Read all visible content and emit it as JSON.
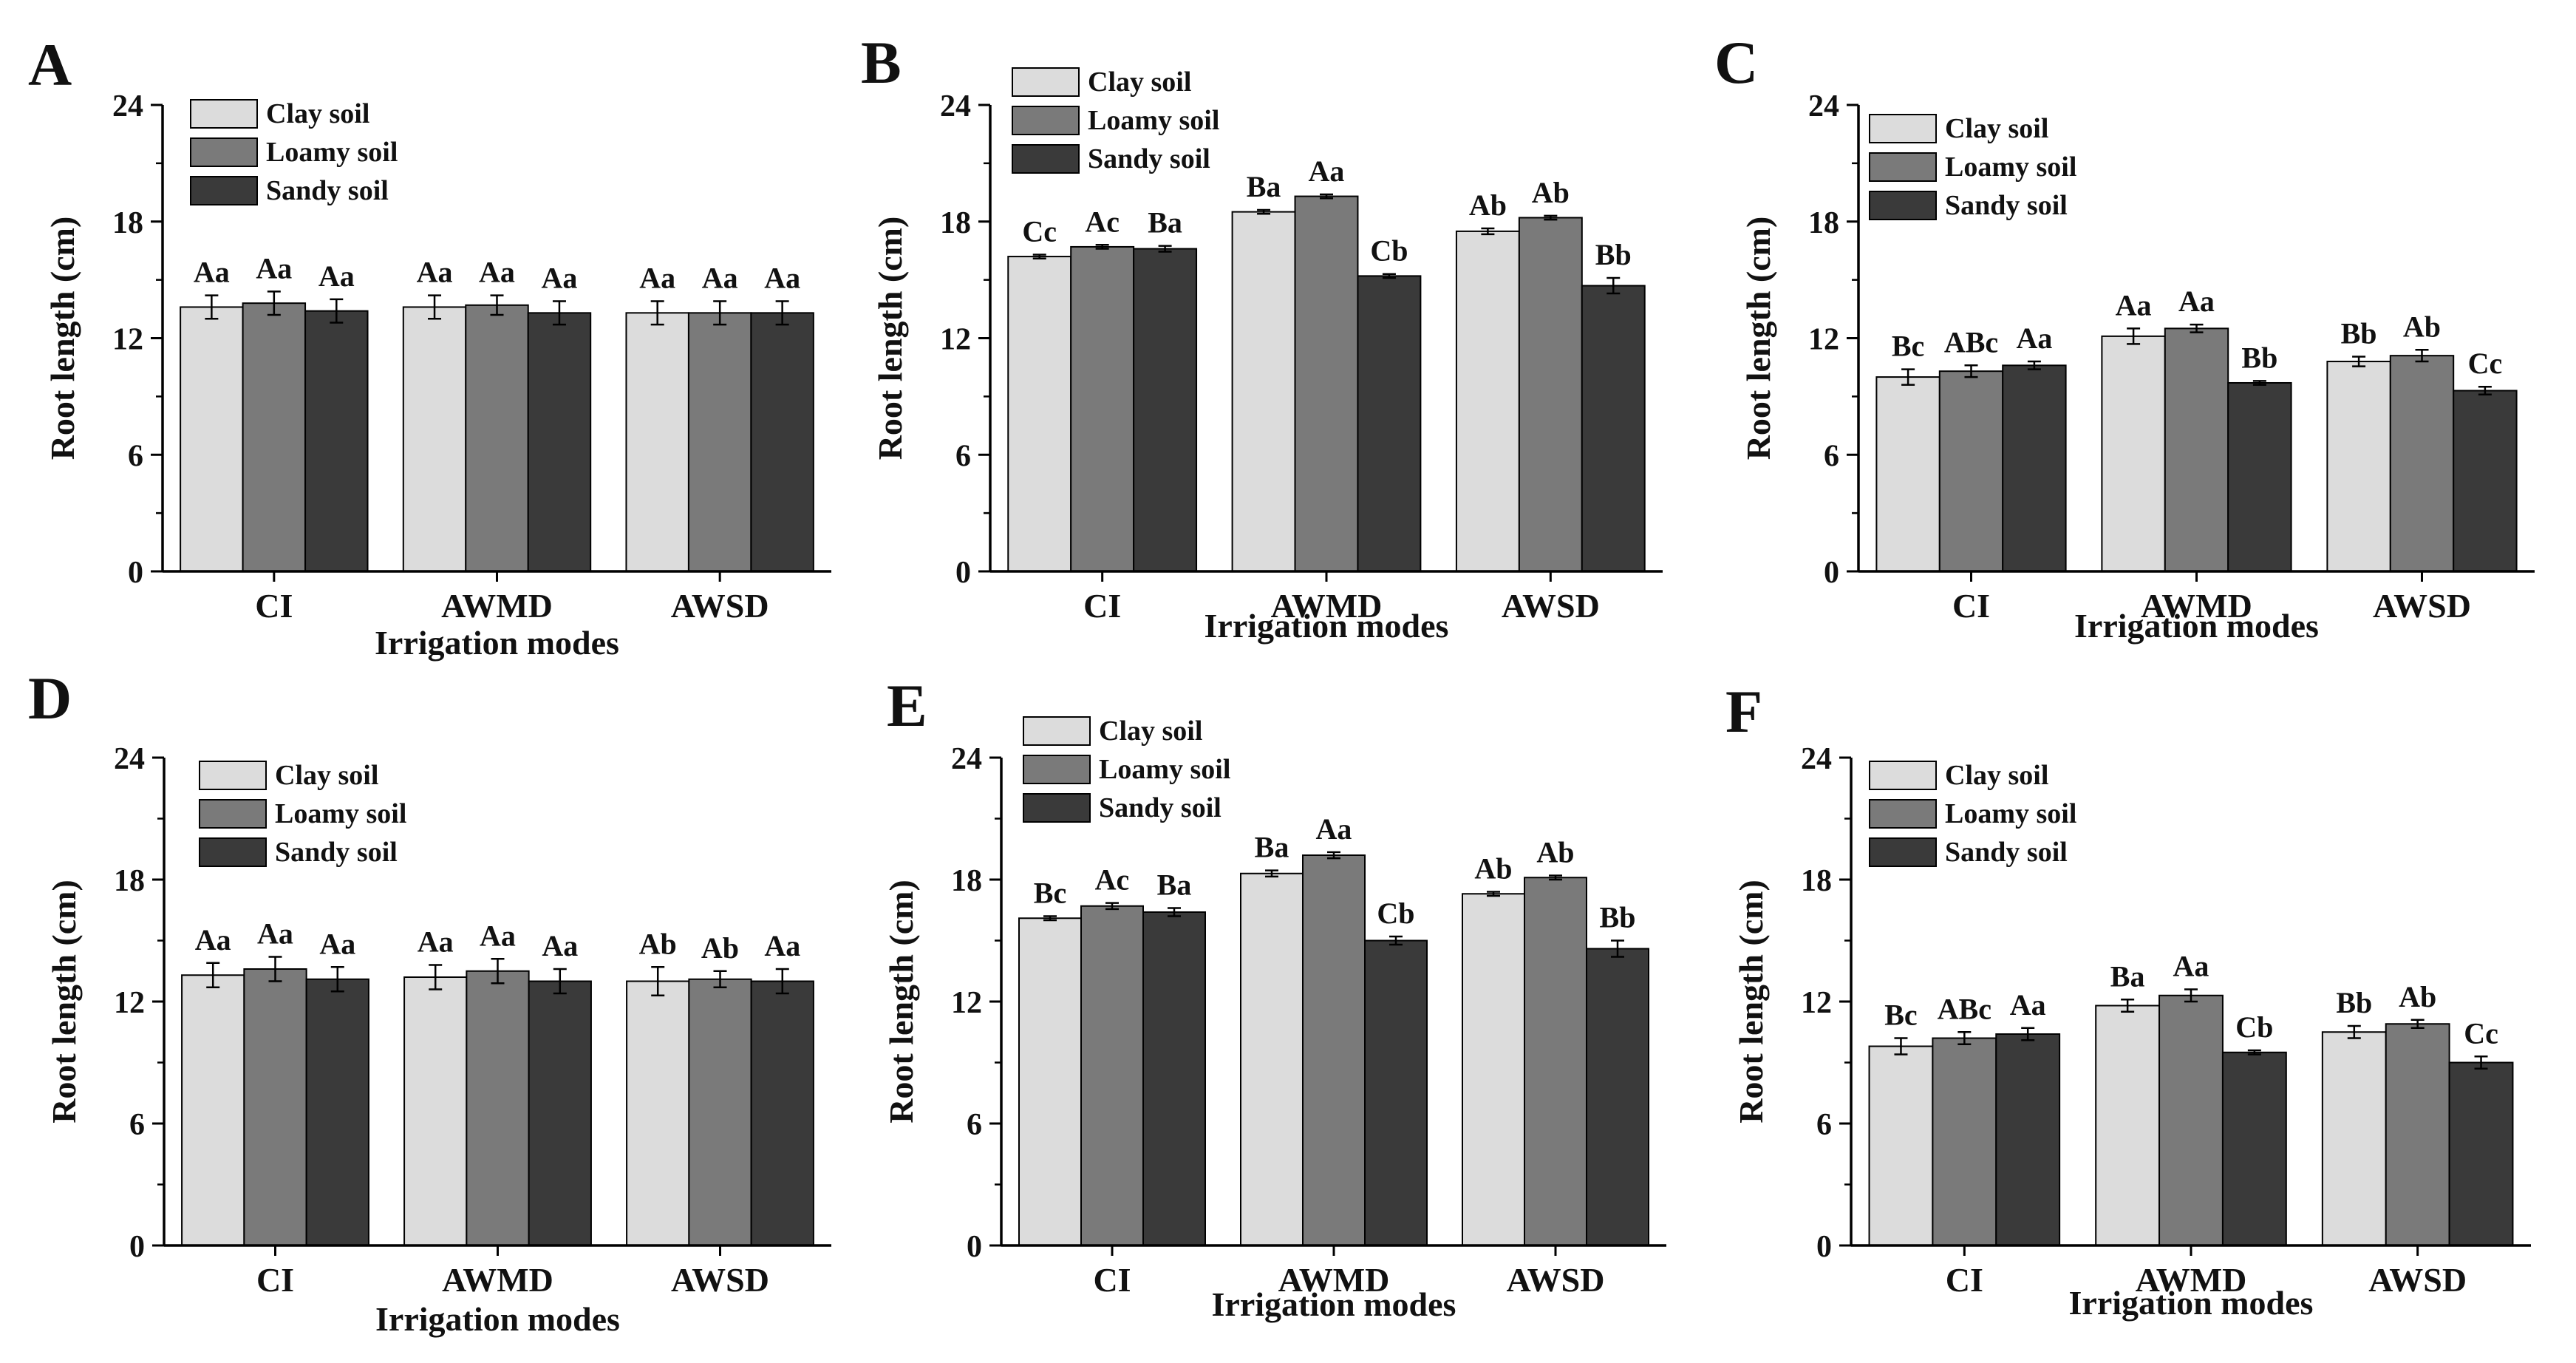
{
  "colors": {
    "clay": "#dcdcdc",
    "loamy": "#7a7a7a",
    "sandy": "#3a3a3a",
    "axis": "#000000",
    "text": "#111111"
  },
  "chart_data": [
    {
      "panel": "A",
      "type": "bar",
      "xlabel": "Irrigation modes",
      "ylabel": "Root length (cm)",
      "ylim": [
        0,
        24
      ],
      "yticks": [
        "0",
        "6",
        "12",
        "18",
        "24"
      ],
      "categories": [
        "CI",
        "AWMD",
        "AWSD"
      ],
      "series": [
        {
          "name": "Clay soil",
          "values": [
            13.6,
            13.6,
            13.3
          ],
          "errors": [
            0.6,
            0.6,
            0.6
          ],
          "labels": [
            "Aa",
            "Aa",
            "Aa"
          ]
        },
        {
          "name": "Loamy soil",
          "values": [
            13.8,
            13.7,
            13.3
          ],
          "errors": [
            0.6,
            0.5,
            0.6
          ],
          "labels": [
            "Aa",
            "Aa",
            "Aa"
          ]
        },
        {
          "name": "Sandy soil",
          "values": [
            13.4,
            13.3,
            13.3
          ],
          "errors": [
            0.6,
            0.6,
            0.6
          ],
          "labels": [
            "Aa",
            "Aa",
            "Aa"
          ]
        }
      ]
    },
    {
      "panel": "B",
      "type": "bar",
      "xlabel": "Irrigation modes",
      "ylabel": "Root length (cm)",
      "ylim": [
        0,
        24
      ],
      "yticks": [
        "0",
        "6",
        "12",
        "18",
        "24"
      ],
      "categories": [
        "CI",
        "AWMD",
        "AWSD"
      ],
      "series": [
        {
          "name": "Clay soil",
          "values": [
            16.2,
            18.5,
            17.5
          ],
          "errors": [
            0.1,
            0.1,
            0.15
          ],
          "labels": [
            "Cc",
            "Ba",
            "Ab"
          ]
        },
        {
          "name": "Loamy soil",
          "values": [
            16.7,
            19.3,
            18.2
          ],
          "errors": [
            0.1,
            0.1,
            0.1
          ],
          "labels": [
            "Ac",
            "Aa",
            "Ab"
          ]
        },
        {
          "name": "Sandy soil",
          "values": [
            16.6,
            15.2,
            14.7
          ],
          "errors": [
            0.15,
            0.1,
            0.4
          ],
          "labels": [
            "Ba",
            "Cb",
            "Bb"
          ]
        }
      ]
    },
    {
      "panel": "C",
      "type": "bar",
      "xlabel": "Irrigation modes",
      "ylabel": "Root length (cm)",
      "ylim": [
        0,
        24
      ],
      "yticks": [
        "0",
        "6",
        "12",
        "18",
        "24"
      ],
      "categories": [
        "CI",
        "AWMD",
        "AWSD"
      ],
      "series": [
        {
          "name": "Clay soil",
          "values": [
            10.0,
            12.1,
            10.8
          ],
          "errors": [
            0.4,
            0.4,
            0.25
          ],
          "labels": [
            "Bc",
            "Aa",
            "Bb"
          ]
        },
        {
          "name": "Loamy soil",
          "values": [
            10.3,
            12.5,
            11.1
          ],
          "errors": [
            0.3,
            0.2,
            0.3
          ],
          "labels": [
            "ABc",
            "Aa",
            "Ab"
          ]
        },
        {
          "name": "Sandy soil",
          "values": [
            10.6,
            9.7,
            9.3
          ],
          "errors": [
            0.2,
            0.1,
            0.2
          ],
          "labels": [
            "Aa",
            "Bb",
            "Cc"
          ]
        }
      ]
    },
    {
      "panel": "D",
      "type": "bar",
      "xlabel": "Irrigation modes",
      "ylabel": "Root length (cm)",
      "ylim": [
        0,
        24
      ],
      "yticks": [
        "0",
        "6",
        "12",
        "18",
        "24"
      ],
      "categories": [
        "CI",
        "AWMD",
        "AWSD"
      ],
      "series": [
        {
          "name": "Clay soil",
          "values": [
            13.3,
            13.2,
            13.0
          ],
          "errors": [
            0.6,
            0.6,
            0.7
          ],
          "labels": [
            "Aa",
            "Aa",
            "Ab"
          ]
        },
        {
          "name": "Loamy soil",
          "values": [
            13.6,
            13.5,
            13.1
          ],
          "errors": [
            0.6,
            0.6,
            0.4
          ],
          "labels": [
            "Aa",
            "Aa",
            "Ab"
          ]
        },
        {
          "name": "Sandy soil",
          "values": [
            13.1,
            13.0,
            13.0
          ],
          "errors": [
            0.6,
            0.6,
            0.6
          ],
          "labels": [
            "Aa",
            "Aa",
            "Aa"
          ]
        }
      ]
    },
    {
      "panel": "E",
      "type": "bar",
      "xlabel": "Irrigation modes",
      "ylabel": "Root length (cm)",
      "ylim": [
        0,
        24
      ],
      "yticks": [
        "0",
        "6",
        "12",
        "18",
        "24"
      ],
      "categories": [
        "CI",
        "AWMD",
        "AWSD"
      ],
      "series": [
        {
          "name": "Clay soil",
          "values": [
            16.1,
            18.3,
            17.3
          ],
          "errors": [
            0.1,
            0.15,
            0.1
          ],
          "labels": [
            "Bc",
            "Ba",
            "Ab"
          ]
        },
        {
          "name": "Loamy soil",
          "values": [
            16.7,
            19.2,
            18.1
          ],
          "errors": [
            0.15,
            0.15,
            0.1
          ],
          "labels": [
            "Ac",
            "Aa",
            "Ab"
          ]
        },
        {
          "name": "Sandy soil",
          "values": [
            16.4,
            15.0,
            14.6
          ],
          "errors": [
            0.2,
            0.2,
            0.4
          ],
          "labels": [
            "Ba",
            "Cb",
            "Bb"
          ]
        }
      ]
    },
    {
      "panel": "F",
      "type": "bar",
      "xlabel": "Irrigation modes",
      "ylabel": "Root length (cm)",
      "ylim": [
        0,
        24
      ],
      "yticks": [
        "0",
        "6",
        "12",
        "18",
        "24"
      ],
      "categories": [
        "CI",
        "AWMD",
        "AWSD"
      ],
      "series": [
        {
          "name": "Clay soil",
          "values": [
            9.8,
            11.8,
            10.5
          ],
          "errors": [
            0.4,
            0.3,
            0.3
          ],
          "labels": [
            "Bc",
            "Ba",
            "Bb"
          ]
        },
        {
          "name": "Loamy soil",
          "values": [
            10.2,
            12.3,
            10.9
          ],
          "errors": [
            0.3,
            0.3,
            0.2
          ],
          "labels": [
            "ABc",
            "Aa",
            "Ab"
          ]
        },
        {
          "name": "Sandy soil",
          "values": [
            10.4,
            9.5,
            9.0
          ],
          "errors": [
            0.3,
            0.1,
            0.3
          ],
          "labels": [
            "Aa",
            "Cb",
            "Cc"
          ]
        }
      ]
    }
  ]
}
